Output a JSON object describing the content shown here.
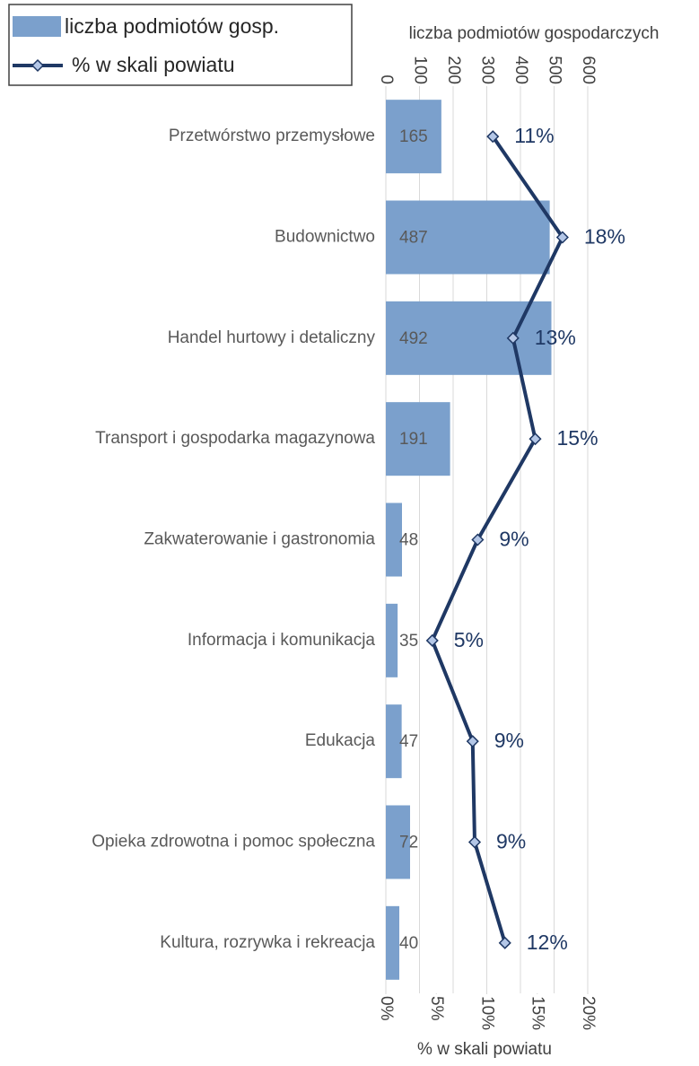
{
  "chart_data": {
    "type": "bar",
    "orientation": "horizontal",
    "categories": [
      "Przetwórstwo przemysłowe",
      "Budownictwo",
      "Handel hurtowy i detaliczny",
      "Transport i gospodarka magazynowa",
      "Zakwaterowanie i gastronomia",
      "Informacja i komunikacja",
      "Edukacja",
      "Opieka zdrowotna i pomoc społeczna",
      "Kultura, rozrywka i rekreacja"
    ],
    "series": [
      {
        "name": "liczba podmiotów gosp.",
        "type": "bar",
        "color": "#7ba0cc",
        "values": [
          165,
          487,
          492,
          191,
          48,
          35,
          47,
          72,
          40
        ]
      },
      {
        "name": "% w skali powiatu",
        "type": "line",
        "axis": "x2",
        "color": "#1f3864",
        "marker_fill": "#b4c7e7",
        "values": [
          10.6,
          17.5,
          12.6,
          14.8,
          9.1,
          4.6,
          8.6,
          8.8,
          11.8
        ],
        "value_labels": [
          "11%",
          "18%",
          "13%",
          "15%",
          "9%",
          "5%",
          "9%",
          "9%",
          "12%"
        ]
      }
    ],
    "x_label": "liczba podmiotów gospodarczych",
    "xlim": [
      0,
      600
    ],
    "xticks": [
      0,
      100,
      200,
      300,
      400,
      500,
      600
    ],
    "x2_label": "% w skali powiatu",
    "x2lim": [
      0,
      20
    ],
    "x2ticks": [
      {
        "value": 0,
        "label": "0%"
      },
      {
        "value": 5,
        "label": "5%"
      },
      {
        "value": 10,
        "label": "10%"
      },
      {
        "value": 15,
        "label": "15%"
      },
      {
        "value": 20,
        "label": "20%"
      }
    ],
    "grid": true,
    "legend": "top-left"
  }
}
